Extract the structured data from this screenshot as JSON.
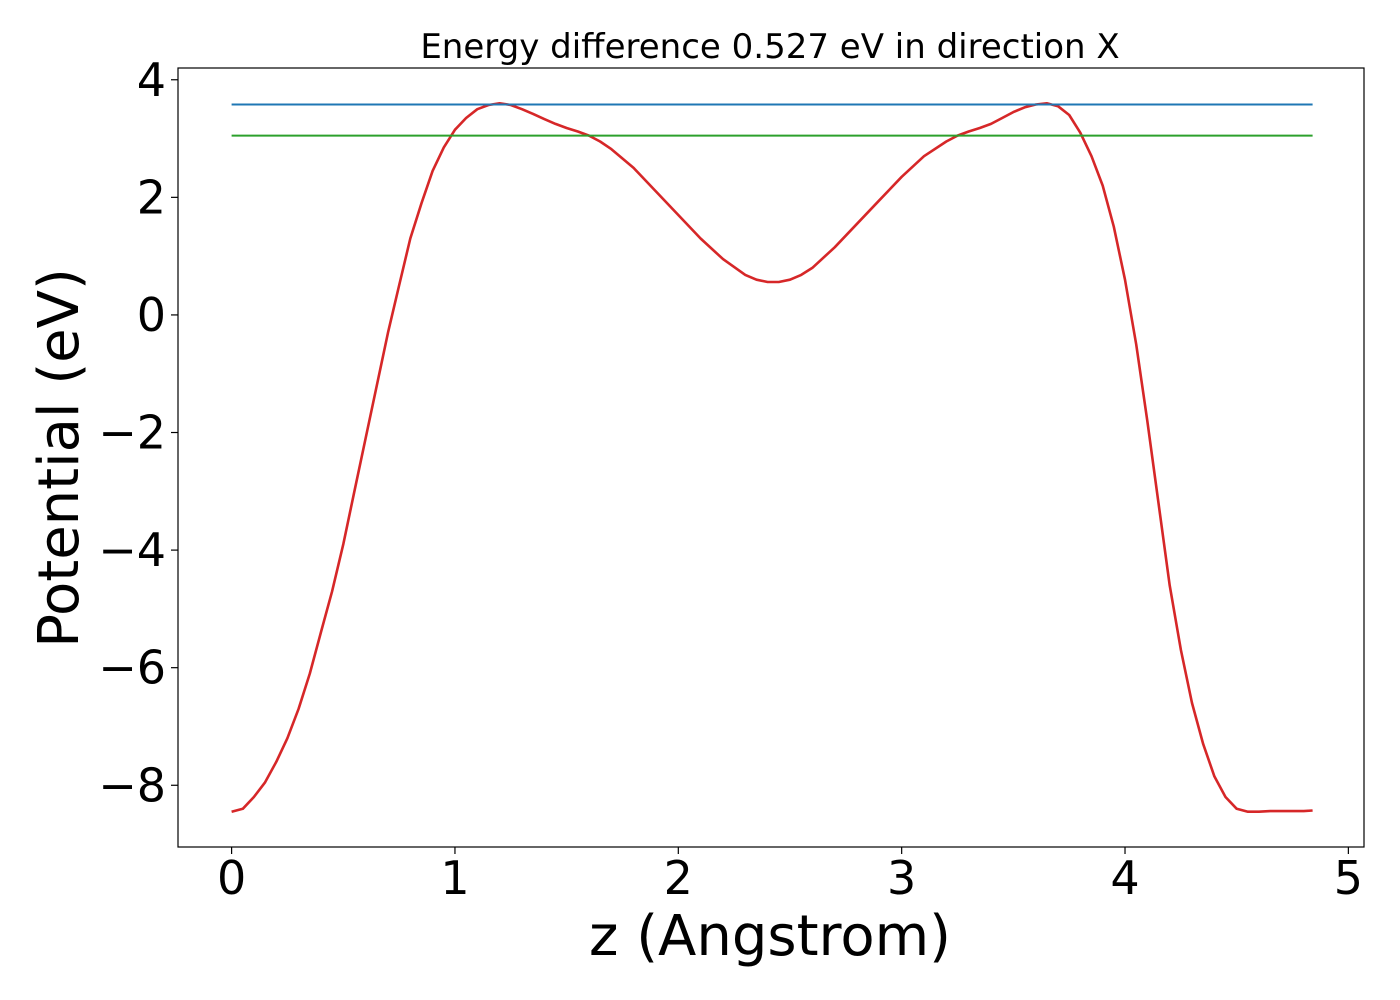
{
  "chart_data": {
    "type": "line",
    "title": "Energy difference 0.527 eV in direction X",
    "xlabel": "z (Angstrom)",
    "ylabel": "Potential (eV)",
    "xlim": [
      -0.24,
      5.07
    ],
    "ylim": [
      -9.05,
      4.2
    ],
    "xticks": [
      0,
      1,
      2,
      3,
      4,
      5
    ],
    "xtick_labels": [
      "0",
      "1",
      "2",
      "3",
      "4",
      "5"
    ],
    "yticks": [
      -8,
      -6,
      -4,
      -2,
      0,
      2,
      4
    ],
    "ytick_labels": [
      "−8",
      "−6",
      "−4",
      "−2",
      "0",
      "2",
      "4"
    ],
    "grid": false,
    "series": [
      {
        "color": "#d62728",
        "x": [
          0.0,
          0.05,
          0.1,
          0.15,
          0.2,
          0.25,
          0.3,
          0.35,
          0.4,
          0.45,
          0.5,
          0.55,
          0.6,
          0.65,
          0.7,
          0.75,
          0.8,
          0.85,
          0.9,
          0.95,
          1.0,
          1.05,
          1.1,
          1.15,
          1.2,
          1.25,
          1.3,
          1.35,
          1.4,
          1.45,
          1.5,
          1.55,
          1.6,
          1.65,
          1.7,
          1.8,
          1.9,
          2.0,
          2.1,
          2.2,
          2.3,
          2.35,
          2.4,
          2.45,
          2.5,
          2.55,
          2.6,
          2.7,
          2.8,
          2.9,
          3.0,
          3.1,
          3.2,
          3.25,
          3.3,
          3.35,
          3.4,
          3.45,
          3.5,
          3.55,
          3.6,
          3.65,
          3.7,
          3.75,
          3.8,
          3.85,
          3.9,
          3.95,
          4.0,
          4.05,
          4.1,
          4.15,
          4.2,
          4.25,
          4.3,
          4.35,
          4.4,
          4.45,
          4.5,
          4.55,
          4.6,
          4.65,
          4.7,
          4.75,
          4.8,
          4.84
        ],
        "y": [
          -8.45,
          -8.4,
          -8.2,
          -7.95,
          -7.6,
          -7.2,
          -6.7,
          -6.1,
          -5.4,
          -4.7,
          -3.9,
          -3.0,
          -2.1,
          -1.2,
          -0.3,
          0.5,
          1.3,
          1.9,
          2.45,
          2.85,
          3.15,
          3.35,
          3.5,
          3.57,
          3.6,
          3.57,
          3.5,
          3.42,
          3.33,
          3.25,
          3.18,
          3.12,
          3.05,
          2.95,
          2.82,
          2.5,
          2.1,
          1.7,
          1.3,
          0.95,
          0.68,
          0.6,
          0.56,
          0.56,
          0.6,
          0.68,
          0.8,
          1.15,
          1.55,
          1.95,
          2.35,
          2.7,
          2.95,
          3.05,
          3.12,
          3.18,
          3.25,
          3.35,
          3.45,
          3.53,
          3.58,
          3.6,
          3.55,
          3.4,
          3.1,
          2.7,
          2.2,
          1.5,
          0.6,
          -0.5,
          -1.8,
          -3.2,
          -4.6,
          -5.7,
          -6.6,
          -7.3,
          -7.85,
          -8.2,
          -8.4,
          -8.45,
          -8.45,
          -8.44,
          -8.44,
          -8.44,
          -8.44,
          -8.43
        ]
      },
      {
        "color": "#1f77b4",
        "x": [
          0.0,
          4.84
        ],
        "y": [
          3.58,
          3.58
        ]
      },
      {
        "color": "#2ca02c",
        "x": [
          0.0,
          4.84
        ],
        "y": [
          3.05,
          3.05
        ]
      }
    ]
  }
}
